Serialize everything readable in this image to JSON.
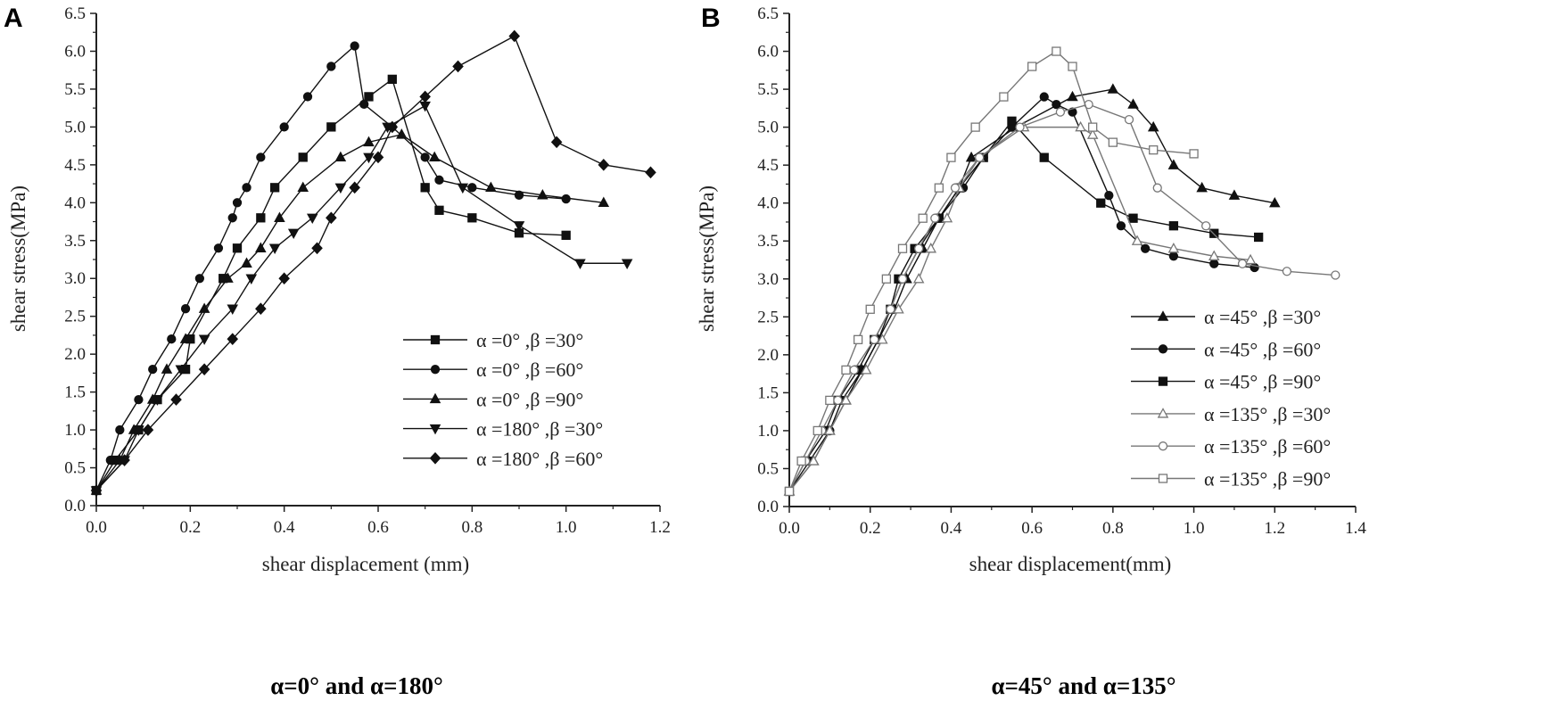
{
  "panels": [
    {
      "letter": "A",
      "caption": "α=0° and α=180°"
    },
    {
      "letter": "B",
      "caption": "α=45° and α=135°"
    }
  ],
  "chart_data": [
    {
      "type": "line",
      "title": "",
      "xlabel": "shear displacement (mm)",
      "ylabel": "shear stress(MPa)",
      "xlim": [
        0,
        1.2
      ],
      "ylim": [
        0,
        6.5
      ],
      "xticks": [
        "0.0",
        "0.2",
        "0.4",
        "0.6",
        "0.8",
        "1.0",
        "1.2"
      ],
      "yticks": [
        "0.0",
        "0.5",
        "1.0",
        "1.5",
        "2.0",
        "2.5",
        "3.0",
        "3.5",
        "4.0",
        "4.5",
        "5.0",
        "5.5",
        "6.0",
        "6.5"
      ],
      "legend_position": "bottom-right",
      "grid": false,
      "series": [
        {
          "name": "α =0° ,β =30°",
          "marker": "square",
          "color": "#111111",
          "fill": true,
          "x": [
            0,
            0.04,
            0.09,
            0.13,
            0.19,
            0.2,
            0.27,
            0.3,
            0.35,
            0.38,
            0.44,
            0.5,
            0.58,
            0.63,
            0.7,
            0.73,
            0.8,
            0.9,
            1.0
          ],
          "y": [
            0.2,
            0.6,
            1.0,
            1.4,
            1.8,
            2.2,
            3.0,
            3.4,
            3.8,
            4.2,
            4.6,
            5.0,
            5.4,
            5.63,
            4.2,
            3.9,
            3.8,
            3.6,
            3.57
          ]
        },
        {
          "name": "α =0° ,β =60°",
          "marker": "circle",
          "color": "#111111",
          "fill": true,
          "x": [
            0,
            0.03,
            0.05,
            0.09,
            0.12,
            0.16,
            0.19,
            0.22,
            0.26,
            0.29,
            0.3,
            0.32,
            0.35,
            0.4,
            0.45,
            0.5,
            0.55,
            0.57,
            0.63,
            0.7,
            0.73,
            0.8,
            0.9,
            1.0
          ],
          "y": [
            0.2,
            0.6,
            1.0,
            1.4,
            1.8,
            2.2,
            2.6,
            3.0,
            3.4,
            3.8,
            4.0,
            4.2,
            4.6,
            5.0,
            5.4,
            5.8,
            6.07,
            5.3,
            5.0,
            4.6,
            4.3,
            4.2,
            4.1,
            4.05
          ]
        },
        {
          "name": "α =0° ,β =90°",
          "marker": "triangle-up",
          "color": "#111111",
          "fill": true,
          "x": [
            0,
            0.05,
            0.08,
            0.12,
            0.15,
            0.19,
            0.23,
            0.28,
            0.32,
            0.35,
            0.39,
            0.44,
            0.52,
            0.58,
            0.65,
            0.72,
            0.84,
            0.95,
            1.08
          ],
          "y": [
            0.2,
            0.6,
            1.0,
            1.4,
            1.8,
            2.2,
            2.6,
            3.0,
            3.2,
            3.4,
            3.8,
            4.2,
            4.6,
            4.8,
            4.9,
            4.6,
            4.2,
            4.1,
            4.0
          ]
        },
        {
          "name": "α =180° ,β =30°",
          "marker": "triangle-down",
          "color": "#111111",
          "fill": true,
          "x": [
            0,
            0.06,
            0.09,
            0.13,
            0.18,
            0.23,
            0.29,
            0.33,
            0.38,
            0.42,
            0.46,
            0.52,
            0.58,
            0.62,
            0.7,
            0.78,
            0.9,
            1.03,
            1.13
          ],
          "y": [
            0.2,
            0.6,
            1.0,
            1.4,
            1.8,
            2.2,
            2.6,
            3.0,
            3.4,
            3.6,
            3.8,
            4.2,
            4.6,
            5.0,
            5.28,
            4.2,
            3.7,
            3.2,
            3.2
          ]
        },
        {
          "name": "α =180° ,β =60°",
          "marker": "diamond",
          "color": "#111111",
          "fill": true,
          "x": [
            0,
            0.06,
            0.11,
            0.17,
            0.23,
            0.29,
            0.35,
            0.4,
            0.47,
            0.5,
            0.55,
            0.6,
            0.63,
            0.7,
            0.77,
            0.89,
            0.98,
            1.08,
            1.18
          ],
          "y": [
            0.2,
            0.6,
            1.0,
            1.4,
            1.8,
            2.2,
            2.6,
            3.0,
            3.4,
            3.8,
            4.2,
            4.6,
            5.0,
            5.4,
            5.8,
            6.2,
            4.8,
            4.5,
            4.4
          ]
        }
      ]
    },
    {
      "type": "line",
      "title": "",
      "xlabel": "shear displacement(mm)",
      "ylabel": "shear stress(MPa)",
      "xlim": [
        0,
        1.4
      ],
      "ylim": [
        0,
        6.5
      ],
      "xticks": [
        "0.0",
        "0.2",
        "0.4",
        "0.6",
        "0.8",
        "1.0",
        "1.2",
        "1.4"
      ],
      "yticks": [
        "0.0",
        "0.5",
        "1.0",
        "1.5",
        "2.0",
        "2.5",
        "3.0",
        "3.5",
        "4.0",
        "4.5",
        "5.0",
        "5.5",
        "6.0",
        "6.5"
      ],
      "legend_position": "bottom-right",
      "grid": false,
      "series": [
        {
          "name": "α =45° ,β =30°",
          "marker": "triangle-up",
          "color": "#111111",
          "fill": true,
          "x": [
            0,
            0.06,
            0.1,
            0.14,
            0.18,
            0.22,
            0.26,
            0.29,
            0.33,
            0.37,
            0.42,
            0.45,
            0.56,
            0.7,
            0.8,
            0.85,
            0.9,
            0.95,
            1.02,
            1.1,
            1.2
          ],
          "y": [
            0.2,
            0.6,
            1.0,
            1.4,
            1.8,
            2.2,
            2.6,
            3.0,
            3.4,
            3.8,
            4.2,
            4.6,
            5.0,
            5.4,
            5.5,
            5.3,
            5.0,
            4.5,
            4.2,
            4.1,
            4.0
          ]
        },
        {
          "name": "α =45° ,β =60°",
          "marker": "circle",
          "color": "#111111",
          "fill": true,
          "x": [
            0,
            0.05,
            0.1,
            0.13,
            0.18,
            0.22,
            0.25,
            0.28,
            0.32,
            0.37,
            0.43,
            0.48,
            0.55,
            0.63,
            0.66,
            0.7,
            0.79,
            0.82,
            0.88,
            0.95,
            1.05,
            1.15
          ],
          "y": [
            0.2,
            0.6,
            1.0,
            1.4,
            1.8,
            2.2,
            2.6,
            3.0,
            3.4,
            3.8,
            4.2,
            4.6,
            5.0,
            5.4,
            5.3,
            5.2,
            4.1,
            3.7,
            3.4,
            3.3,
            3.2,
            3.15
          ]
        },
        {
          "name": "α =45° ,β =90°",
          "marker": "square",
          "color": "#111111",
          "fill": true,
          "x": [
            0,
            0.04,
            0.09,
            0.12,
            0.17,
            0.21,
            0.25,
            0.27,
            0.31,
            0.37,
            0.42,
            0.48,
            0.55,
            0.63,
            0.77,
            0.85,
            0.95,
            1.05,
            1.16
          ],
          "y": [
            0.2,
            0.6,
            1.0,
            1.4,
            1.8,
            2.2,
            2.6,
            3.0,
            3.4,
            3.8,
            4.2,
            4.6,
            5.08,
            4.6,
            4.0,
            3.8,
            3.7,
            3.6,
            3.55
          ]
        },
        {
          "name": "α =135° ,β =30°",
          "marker": "triangle-up",
          "color": "#777777",
          "fill": false,
          "x": [
            0,
            0.06,
            0.1,
            0.14,
            0.19,
            0.23,
            0.27,
            0.32,
            0.35,
            0.39,
            0.42,
            0.47,
            0.58,
            0.72,
            0.75,
            0.86,
            0.95,
            1.05,
            1.14
          ],
          "y": [
            0.2,
            0.6,
            1.0,
            1.4,
            1.8,
            2.2,
            2.6,
            3.0,
            3.4,
            3.8,
            4.2,
            4.6,
            5.0,
            5.0,
            4.9,
            3.5,
            3.4,
            3.3,
            3.25
          ]
        },
        {
          "name": "α =135° ,β =60°",
          "marker": "circle",
          "color": "#777777",
          "fill": false,
          "x": [
            0,
            0.04,
            0.08,
            0.12,
            0.16,
            0.21,
            0.25,
            0.28,
            0.32,
            0.36,
            0.41,
            0.47,
            0.57,
            0.67,
            0.74,
            0.84,
            0.91,
            1.03,
            1.12,
            1.23,
            1.35
          ],
          "y": [
            0.2,
            0.6,
            1.0,
            1.4,
            1.8,
            2.2,
            2.6,
            3.0,
            3.4,
            3.8,
            4.2,
            4.6,
            5.0,
            5.2,
            5.3,
            5.1,
            4.2,
            3.7,
            3.2,
            3.1,
            3.05
          ]
        },
        {
          "name": "α =135° ,β =90°",
          "marker": "square",
          "color": "#777777",
          "fill": false,
          "x": [
            0,
            0.03,
            0.07,
            0.1,
            0.14,
            0.17,
            0.2,
            0.24,
            0.28,
            0.33,
            0.37,
            0.4,
            0.46,
            0.53,
            0.6,
            0.66,
            0.7,
            0.75,
            0.8,
            0.9,
            1.0
          ],
          "y": [
            0.2,
            0.6,
            1.0,
            1.4,
            1.8,
            2.2,
            2.6,
            3.0,
            3.4,
            3.8,
            4.2,
            4.6,
            5.0,
            5.4,
            5.8,
            6.0,
            5.8,
            5.0,
            4.8,
            4.7,
            4.65
          ]
        }
      ]
    }
  ]
}
